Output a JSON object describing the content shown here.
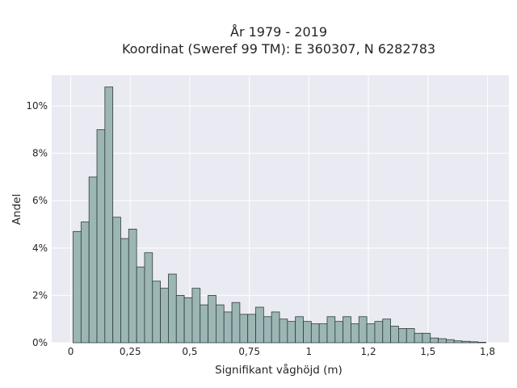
{
  "chart_data": {
    "type": "bar",
    "title_line1": "År 1979 - 2019",
    "title_line2": "Koordinat (Sweref 99 TM): E 360307, N 6282783",
    "xlabel": "Signifikant våghöjd (m)",
    "ylabel": "Andel",
    "xlim": [
      -0.08,
      1.84
    ],
    "ylim": [
      0,
      0.113
    ],
    "grid": true,
    "bin_width": 0.0333,
    "x_ticks": [
      0,
      0.25,
      0.5,
      0.75,
      1,
      1.25,
      1.5,
      1.75
    ],
    "x_tick_labels": [
      "0",
      "0,25",
      "0,5",
      "0,75",
      "1",
      "1,2",
      "1,5",
      "1,8"
    ],
    "y_ticks": [
      0,
      0.02,
      0.04,
      0.06,
      0.08,
      0.1
    ],
    "y_tick_labels": [
      "0%",
      "2%",
      "4%",
      "6%",
      "8%",
      "10%"
    ],
    "bin_starts": [
      0.01,
      0.0433,
      0.0767,
      0.11,
      0.1433,
      0.1767,
      0.21,
      0.2433,
      0.2767,
      0.31,
      0.3433,
      0.3767,
      0.41,
      0.4433,
      0.4767,
      0.51,
      0.5433,
      0.5767,
      0.61,
      0.6433,
      0.6767,
      0.71,
      0.7433,
      0.7767,
      0.81,
      0.8433,
      0.8767,
      0.91,
      0.9433,
      0.9767,
      1.01,
      1.0433,
      1.0767,
      1.11,
      1.1433,
      1.1767,
      1.21,
      1.2433,
      1.2767,
      1.31,
      1.3433,
      1.3767,
      1.41,
      1.4433,
      1.4767,
      1.51,
      1.5433,
      1.5767,
      1.61,
      1.6433,
      1.6767,
      1.71
    ],
    "values": [
      0.047,
      0.051,
      0.07,
      0.09,
      0.108,
      0.053,
      0.044,
      0.048,
      0.032,
      0.038,
      0.026,
      0.023,
      0.029,
      0.02,
      0.019,
      0.023,
      0.016,
      0.02,
      0.016,
      0.013,
      0.017,
      0.012,
      0.012,
      0.015,
      0.011,
      0.013,
      0.01,
      0.009,
      0.011,
      0.009,
      0.008,
      0.008,
      0.011,
      0.009,
      0.011,
      0.008,
      0.011,
      0.008,
      0.009,
      0.01,
      0.007,
      0.006,
      0.006,
      0.004,
      0.004,
      0.002,
      0.0017,
      0.0013,
      0.0008,
      0.0006,
      0.0004,
      0.0002
    ]
  }
}
